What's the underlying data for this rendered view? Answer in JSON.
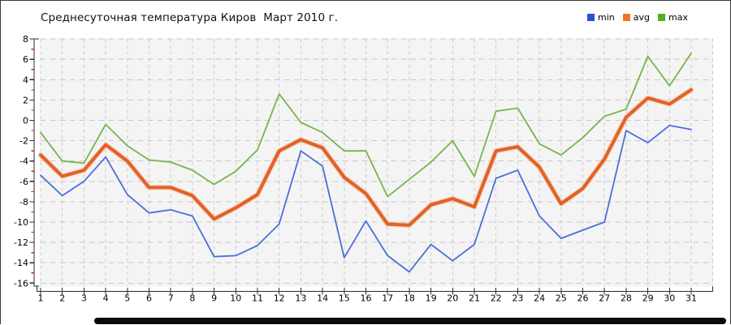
{
  "title": "Среднесуточная температура Киров  Март 2010 г.",
  "legend": [
    {
      "label": "min",
      "color": "#2b50d8"
    },
    {
      "label": "avg",
      "color": "#ee7623"
    },
    {
      "label": "max",
      "color": "#4fb123"
    }
  ],
  "chart_data": {
    "type": "line",
    "title": "Среднесуточная температура Киров  Март 2010 г.",
    "xlabel": "",
    "ylabel": "",
    "x": [
      1,
      2,
      3,
      4,
      5,
      6,
      7,
      8,
      9,
      10,
      11,
      12,
      13,
      14,
      15,
      16,
      17,
      18,
      19,
      20,
      21,
      22,
      23,
      24,
      25,
      26,
      27,
      28,
      29,
      30,
      31
    ],
    "ylim": [
      -16,
      8
    ],
    "ytick_step": 2,
    "grid": true,
    "legend_position": "top-right",
    "series": [
      {
        "name": "min",
        "color": "#4a6fd9",
        "width": 1.8,
        "values": [
          -5.4,
          -7.4,
          -6.0,
          -3.6,
          -7.3,
          -9.1,
          -8.8,
          -9.4,
          -13.4,
          -13.3,
          -12.3,
          -10.2,
          -3.0,
          -4.5,
          -13.5,
          -9.9,
          -13.3,
          -14.9,
          -12.2,
          -13.8,
          -12.2,
          -5.7,
          -4.9,
          -9.4,
          -11.6,
          -10.8,
          -10.0,
          -1.0,
          -2.2,
          -0.5,
          -0.9
        ]
      },
      {
        "name": "avg",
        "color": "#e2622a",
        "halo": "#f8cba6",
        "width": 4.2,
        "values": [
          -3.4,
          -5.5,
          -4.9,
          -2.4,
          -4.0,
          -6.6,
          -6.6,
          -7.4,
          -9.7,
          -8.6,
          -7.3,
          -3.0,
          -1.9,
          -2.7,
          -5.6,
          -7.2,
          -10.2,
          -10.3,
          -8.3,
          -7.7,
          -8.5,
          -3.0,
          -2.6,
          -4.6,
          -8.2,
          -6.7,
          -3.8,
          0.3,
          2.2,
          1.6,
          3.0
        ]
      },
      {
        "name": "max",
        "color": "#78b44c",
        "width": 1.8,
        "values": [
          -1.2,
          -4.0,
          -4.2,
          -0.4,
          -2.5,
          -3.9,
          -4.1,
          -4.9,
          -6.3,
          -5.0,
          -2.9,
          2.6,
          -0.2,
          -1.2,
          -3.0,
          -3.0,
          -7.5,
          -5.8,
          -4.1,
          -2.0,
          -5.5,
          0.9,
          1.2,
          -2.3,
          -3.4,
          -1.7,
          0.4,
          1.1,
          6.3,
          3.4,
          6.6
        ]
      }
    ],
    "colors": {
      "plot_bg": "#f4f4f4",
      "grid": "#c9c9c9",
      "axis": "#2b2b2b",
      "minor_tick": "#cc2020",
      "text": "#000000"
    }
  }
}
